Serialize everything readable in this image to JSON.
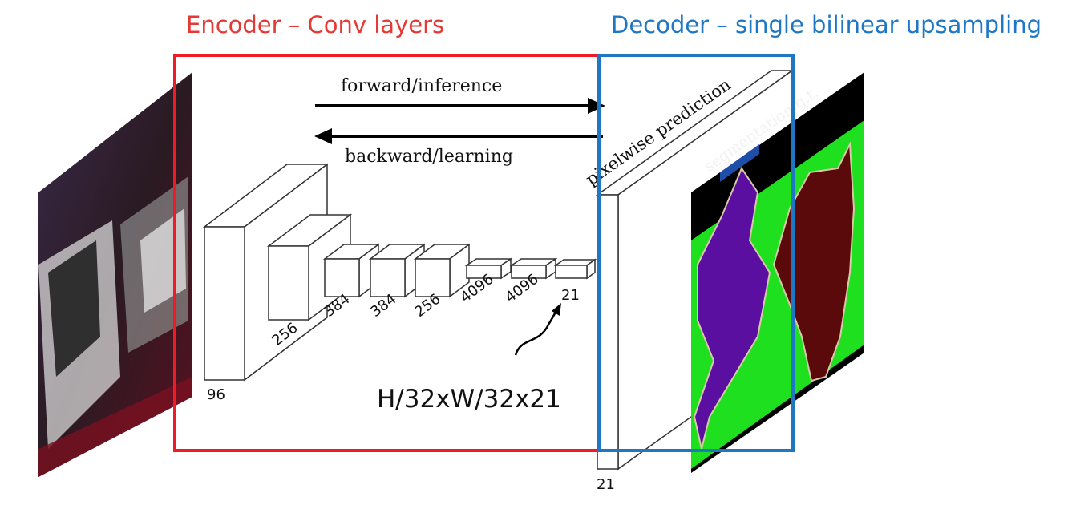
{
  "titles": {
    "encoder": "Encoder – Conv layers",
    "decoder": "Decoder – single bilinear upsampling"
  },
  "arrows": {
    "forward": "forward/inference",
    "backward": "backward/learning"
  },
  "layers": {
    "l1": "96",
    "l2": "256",
    "l3": "384",
    "l4": "384",
    "l5": "256",
    "l6": "4096",
    "l7": "4096",
    "l8": "21",
    "output": "21"
  },
  "annotation": "H/32xW/32x21",
  "output_labels": {
    "prediction": "pixelwise prediction",
    "ground_truth": "segmentation g.t."
  },
  "colors": {
    "encoder": "#ee1c25",
    "decoder": "#1f77c4",
    "gt_green": "#1ee01e",
    "gt_dog": "#5a0fa0",
    "gt_cat": "#5a0a0a"
  }
}
